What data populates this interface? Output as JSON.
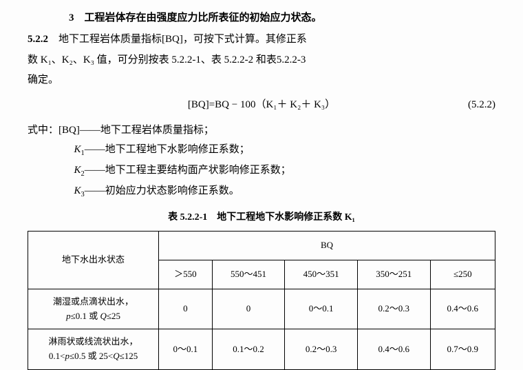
{
  "intro": {
    "item3": "3　工程岩体存在由强度应力比所表征的初始应力状态。",
    "sec": "5.2.2",
    "secText": "　地下工程岩体质量指标[BQ]，可按下式计算。其修正系",
    "line2": "数 K₁、K₂、K₃ 值，可分别按表 5.2.2-1、表 5.2.2-2 和表5.2.2-3",
    "line3": "确定。"
  },
  "formula": {
    "expr": "[BQ]=BQ − 100（K₁＋ K₂＋ K₃）",
    "num": "(5.2.2)"
  },
  "defs": {
    "head": "式中：[BQ]——地下工程岩体质量指标；",
    "k1": "K₁——地下工程地下水影响修正系数；",
    "k2": "K₂——地下工程主要结构面产状影响修正系数；",
    "k3": "K₃——初始应力状态影响修正系数。"
  },
  "table": {
    "caption": "表 5.2.2-1　地下工程地下水影响修正系数 K₁",
    "rowHeader": "地下水出水状态",
    "bqHeader": "BQ",
    "cols": [
      "＞550",
      "550～451",
      "450～351",
      "350～251",
      "≤250"
    ],
    "rows": [
      {
        "label": "潮湿或点滴状出水，\np≤0.1 或 Q≤25",
        "cells": [
          "0",
          "0",
          "0～0.1",
          "0.2～0.3",
          "0.4～0.6"
        ]
      },
      {
        "label": "淋雨状或线流状出水，\n0.1<p≤0.5 或 25<Q≤125",
        "cells": [
          "0～0.1",
          "0.1～0.2",
          "0.2～0.3",
          "0.4～0.6",
          "0.7～0.9"
        ]
      }
    ]
  }
}
